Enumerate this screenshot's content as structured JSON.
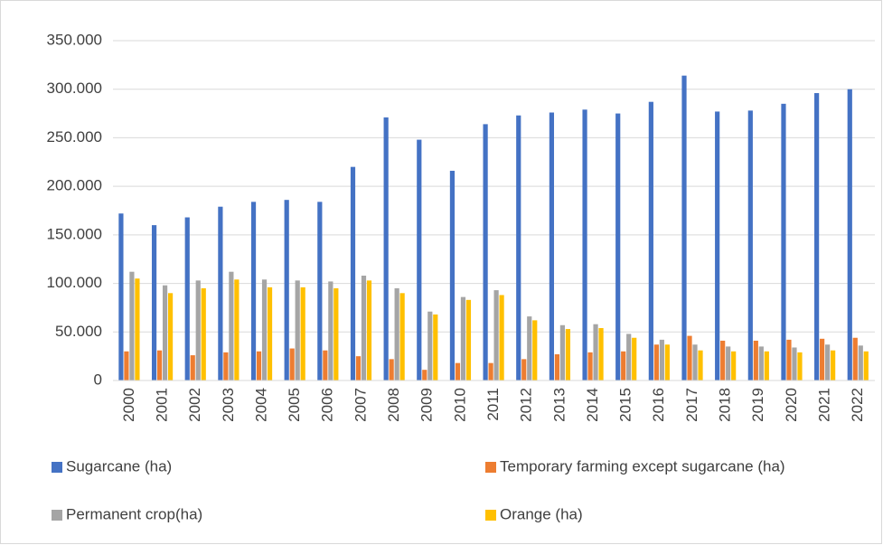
{
  "chart_data": {
    "type": "bar",
    "categories": [
      "2000",
      "2001",
      "2002",
      "2003",
      "2004",
      "2005",
      "2006",
      "2007",
      "2008",
      "2009",
      "2010",
      "2011",
      "2012",
      "2013",
      "2014",
      "2015",
      "2016",
      "2017",
      "2018",
      "2019",
      "2020",
      "2021",
      "2022"
    ],
    "series": [
      {
        "name": "Sugarcane (ha)",
        "color": "#4472c4",
        "values": [
          172000,
          160000,
          168000,
          179000,
          184000,
          186000,
          184000,
          220000,
          271000,
          248000,
          216000,
          264000,
          273000,
          276000,
          279000,
          275000,
          287000,
          314000,
          277000,
          278000,
          285000,
          296000,
          300000
        ]
      },
      {
        "name": "Temporary farming except sugarcane (ha)",
        "color": "#ed7d31",
        "values": [
          30000,
          31000,
          26000,
          29000,
          30000,
          33000,
          31000,
          25000,
          22000,
          11000,
          18000,
          18000,
          22000,
          27000,
          29000,
          30000,
          37000,
          46000,
          41000,
          41000,
          42000,
          43000,
          44000
        ]
      },
      {
        "name": "Permanent crop(ha)",
        "color": "#a5a5a5",
        "values": [
          112000,
          98000,
          103000,
          112000,
          104000,
          103000,
          102000,
          108000,
          95000,
          71000,
          86000,
          93000,
          66000,
          57000,
          58000,
          48000,
          42000,
          37000,
          35000,
          35000,
          34000,
          37000,
          36000
        ]
      },
      {
        "name": "Orange (ha)",
        "color": "#ffc000",
        "values": [
          105000,
          90000,
          95000,
          104000,
          96000,
          96000,
          95000,
          103000,
          90000,
          68000,
          83000,
          88000,
          62000,
          53000,
          54000,
          44000,
          37000,
          31000,
          30000,
          30000,
          29000,
          31000,
          30000
        ]
      }
    ],
    "ylim": [
      0,
      350000
    ],
    "yticks": [
      0,
      {
        "value": 50000,
        "label": "50.000"
      },
      {
        "value": 100000,
        "label": "100.000"
      },
      {
        "value": 150000,
        "label": "150.000"
      },
      {
        "value": 200000,
        "label": "200.000"
      },
      {
        "value": 250000,
        "label": "250.000"
      },
      {
        "value": 300000,
        "label": "300.000"
      },
      {
        "value": 350000,
        "label": "350.000"
      }
    ],
    "grid": true,
    "legend": "bottom"
  }
}
